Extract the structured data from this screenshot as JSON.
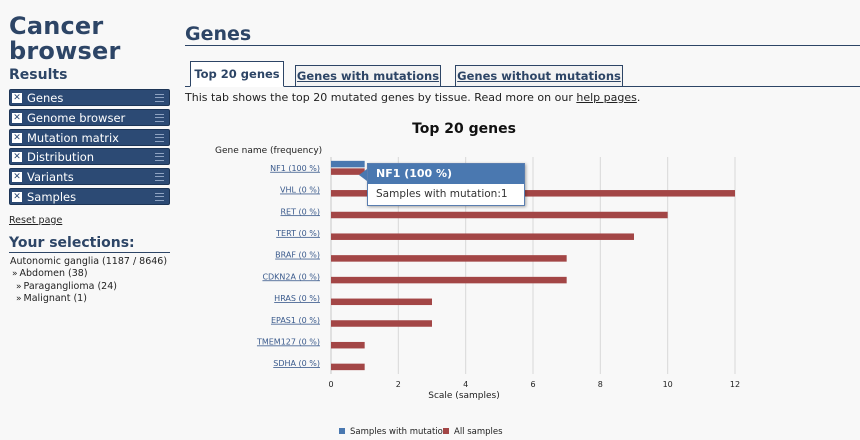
{
  "sidebar": {
    "title_line1": "Cancer",
    "title_line2": "browser",
    "results_title": "Results",
    "menu": [
      {
        "label": "Genes"
      },
      {
        "label": "Genome browser"
      },
      {
        "label": "Mutation matrix"
      },
      {
        "label": "Distribution"
      },
      {
        "label": "Variants"
      },
      {
        "label": "Samples"
      }
    ],
    "close_glyph": "✕",
    "reset_label": "Reset page",
    "selections_title": "Your selections:",
    "selections": [
      {
        "text": "Autonomic ganglia (1187 / 8646)"
      },
      {
        "text": "Abdomen (38)"
      },
      {
        "text": "Paraganglioma (24)"
      },
      {
        "text": "Malignant (1)"
      }
    ],
    "arrow_glyph": "»"
  },
  "main": {
    "page_title": "Genes",
    "tabs": [
      {
        "label": "Top 20 genes"
      },
      {
        "label": "Genes with mutations"
      },
      {
        "label": "Genes without mutations"
      }
    ],
    "intro_text": "This tab shows the top 20 mutated genes by tissue. Read more on our ",
    "intro_link": "help pages",
    "intro_end": "."
  },
  "tooltip": {
    "title": "NF1 (100 %)",
    "body": "Samples with mutation:1"
  },
  "chart_data": {
    "type": "bar",
    "orientation": "horizontal",
    "title": "Top 20 genes",
    "ylabel": "Gene name (frequency)",
    "xlabel": "Scale (samples)",
    "xlim": [
      0,
      12
    ],
    "xticks": [
      0,
      2,
      4,
      6,
      8,
      10,
      12
    ],
    "categories": [
      "NF1 (100 %)",
      "VHL (0 %)",
      "RET (0 %)",
      "TERT (0 %)",
      "BRAF (0 %)",
      "CDKN2A (0 %)",
      "HRAS (0 %)",
      "EPAS1 (0 %)",
      "TMEM127 (0 %)",
      "SDHA (0 %)"
    ],
    "series": [
      {
        "name": "Samples with mutation",
        "color": "#4a78b0",
        "values": [
          1,
          0,
          0,
          0,
          0,
          0,
          0,
          0,
          0,
          0
        ]
      },
      {
        "name": "All samples",
        "color": "#a34646",
        "values": [
          1,
          12,
          10,
          9,
          7,
          7,
          3,
          3,
          1,
          1
        ]
      }
    ],
    "legend_position": "bottom"
  }
}
